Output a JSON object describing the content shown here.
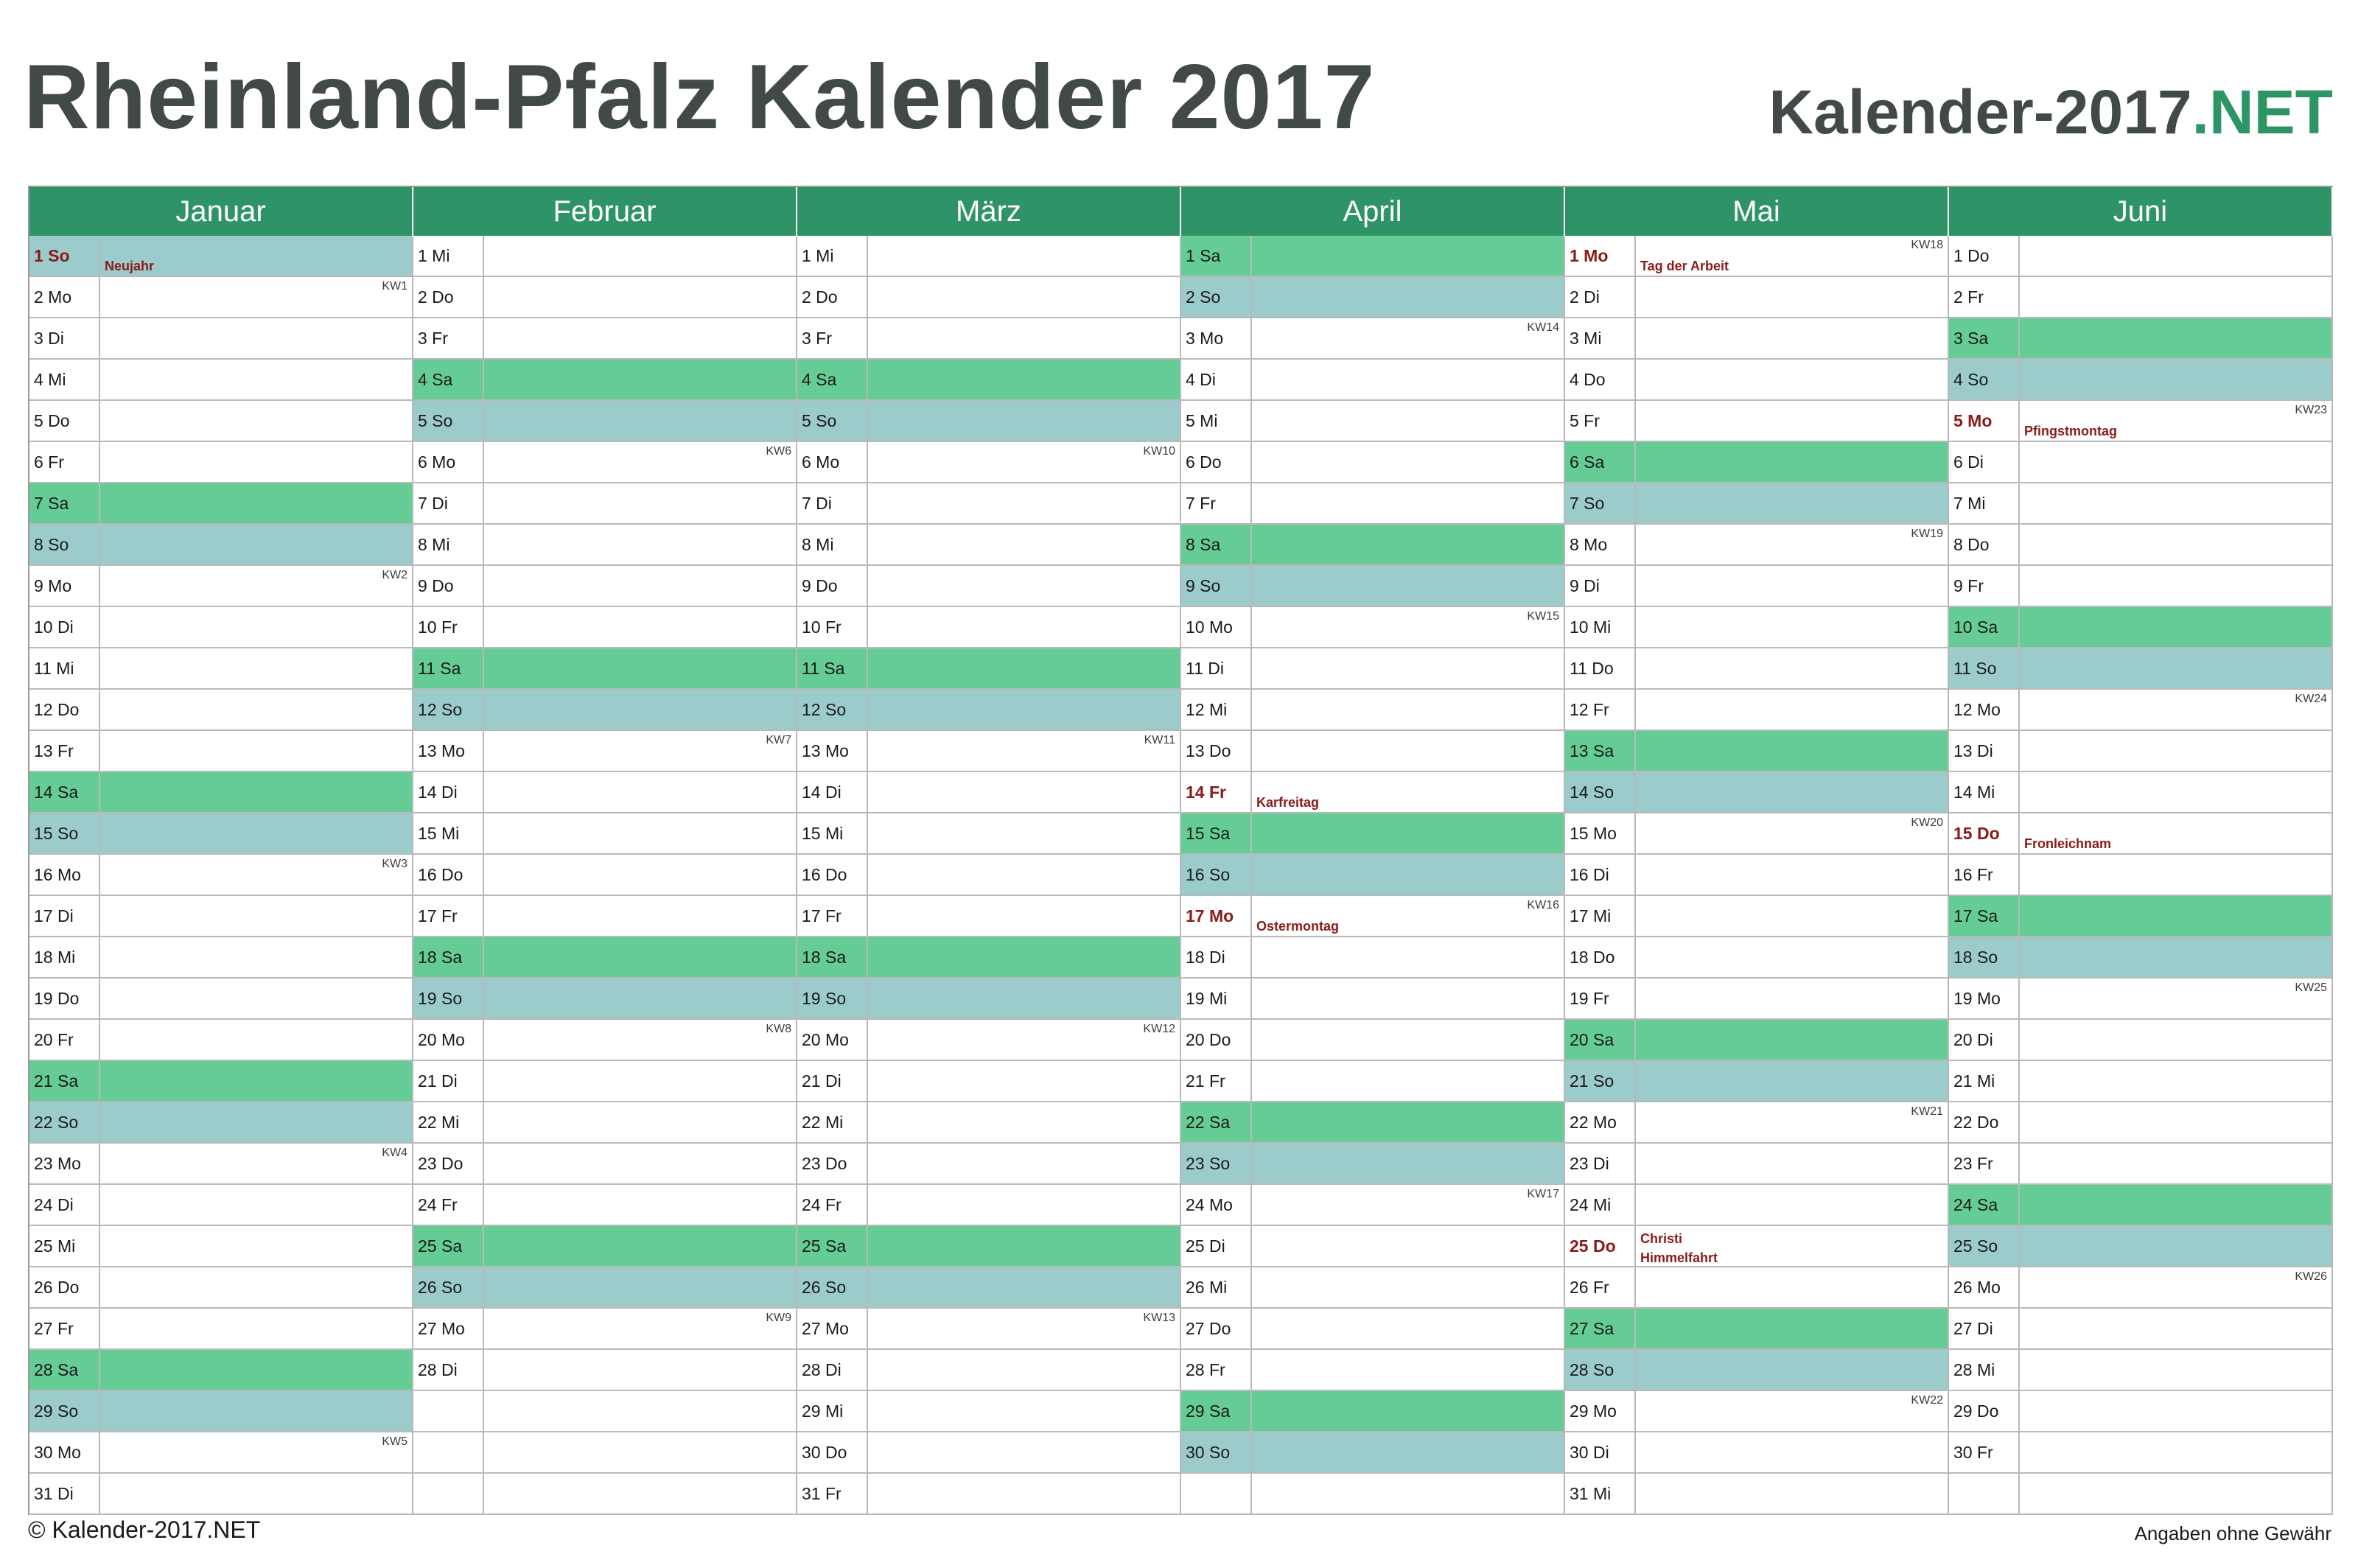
{
  "header": {
    "title": "Rheinland-Pfalz Kalender 2017",
    "brand_main": "Kalender-2017",
    "brand_accent": ".NET"
  },
  "footer": {
    "copyright": "© Kalender-2017.NET",
    "disclaimer": "Angaben ohne Gewähr"
  },
  "colors": {
    "header_green": "#2e9467",
    "saturday": "#66cc96",
    "sunday": "#9ccbcb",
    "holiday_text": "#8b1a1a",
    "title_text": "#414a48"
  },
  "weekday_abbr": [
    "Mo",
    "Di",
    "Mi",
    "Do",
    "Fr",
    "Sa",
    "So"
  ],
  "months": [
    {
      "name": "Januar",
      "days": 31,
      "first_weekday": 6
    },
    {
      "name": "Februar",
      "days": 28,
      "first_weekday": 2
    },
    {
      "name": "März",
      "days": 31,
      "first_weekday": 2
    },
    {
      "name": "April",
      "days": 30,
      "first_weekday": 5
    },
    {
      "name": "Mai",
      "days": 31,
      "first_weekday": 0
    },
    {
      "name": "Juni",
      "days": 30,
      "first_weekday": 3
    }
  ],
  "holidays": [
    {
      "month": 1,
      "day": 1,
      "name": "Neujahr"
    },
    {
      "month": 4,
      "day": 14,
      "name": "Karfreitag"
    },
    {
      "month": 4,
      "day": 17,
      "name": "Ostermontag"
    },
    {
      "month": 5,
      "day": 1,
      "name": "Tag der Arbeit"
    },
    {
      "month": 5,
      "day": 25,
      "name": "Christi Himmelfahrt",
      "lines": [
        "Christi",
        "Himmelfahrt"
      ]
    },
    {
      "month": 6,
      "day": 5,
      "name": "Pfingstmontag"
    },
    {
      "month": 6,
      "day": 15,
      "name": "Fronleichnam"
    }
  ],
  "week_labels": [
    {
      "month": 1,
      "day": 2,
      "label": "KW1"
    },
    {
      "month": 1,
      "day": 9,
      "label": "KW2"
    },
    {
      "month": 1,
      "day": 16,
      "label": "KW3"
    },
    {
      "month": 1,
      "day": 23,
      "label": "KW4"
    },
    {
      "month": 1,
      "day": 30,
      "label": "KW5"
    },
    {
      "month": 2,
      "day": 6,
      "label": "KW6"
    },
    {
      "month": 2,
      "day": 13,
      "label": "KW7"
    },
    {
      "month": 2,
      "day": 20,
      "label": "KW8"
    },
    {
      "month": 2,
      "day": 27,
      "label": "KW9"
    },
    {
      "month": 3,
      "day": 6,
      "label": "KW10"
    },
    {
      "month": 3,
      "day": 13,
      "label": "KW11"
    },
    {
      "month": 3,
      "day": 20,
      "label": "KW12"
    },
    {
      "month": 3,
      "day": 27,
      "label": "KW13"
    },
    {
      "month": 4,
      "day": 3,
      "label": "KW14"
    },
    {
      "month": 4,
      "day": 10,
      "label": "KW15"
    },
    {
      "month": 4,
      "day": 17,
      "label": "KW16"
    },
    {
      "month": 4,
      "day": 24,
      "label": "KW17"
    },
    {
      "month": 5,
      "day": 1,
      "label": "KW18"
    },
    {
      "month": 5,
      "day": 8,
      "label": "KW19"
    },
    {
      "month": 5,
      "day": 15,
      "label": "KW20"
    },
    {
      "month": 5,
      "day": 22,
      "label": "KW21"
    },
    {
      "month": 5,
      "day": 29,
      "label": "KW22"
    },
    {
      "month": 6,
      "day": 5,
      "label": "KW23"
    },
    {
      "month": 6,
      "day": 12,
      "label": "KW24"
    },
    {
      "month": 6,
      "day": 19,
      "label": "KW25"
    },
    {
      "month": 6,
      "day": 26,
      "label": "KW26"
    }
  ]
}
